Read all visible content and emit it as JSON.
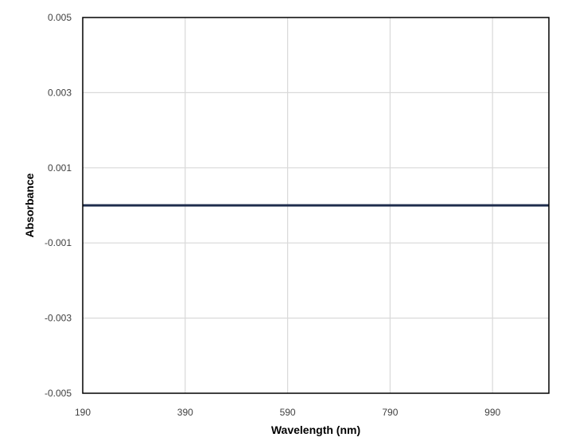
{
  "chart_data": {
    "type": "line",
    "title": "",
    "xlabel": "Wavelength (nm)",
    "ylabel": "Absorbance",
    "xlim": [
      190,
      1100
    ],
    "ylim": [
      -0.005,
      0.005
    ],
    "x_ticks": [
      190,
      390,
      590,
      790,
      990
    ],
    "x_tick_labels": [
      "190",
      "390",
      "590",
      "790",
      "990"
    ],
    "y_ticks": [
      -0.005,
      -0.003,
      -0.001,
      0.001,
      0.003,
      0.005
    ],
    "y_tick_labels": [
      "-0.005",
      "-0.003",
      "-0.001",
      "0.001",
      "0.003",
      "0.005"
    ],
    "grid": true,
    "legend": "none",
    "series": [
      {
        "color": "#1f2d4d",
        "x": [
          190,
          1100
        ],
        "y": [
          0.0,
          0.0
        ]
      }
    ]
  }
}
